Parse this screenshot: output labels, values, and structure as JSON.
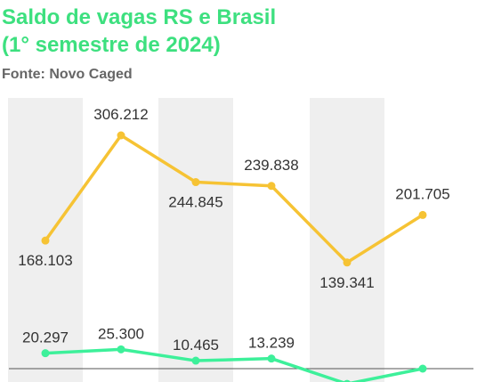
{
  "header": {
    "title_line1": "Saldo de vagas RS e Brasil",
    "title_line2": "(1° semestre de 2024)",
    "source": "Fonte: Novo Caged"
  },
  "colors": {
    "title": "#3de07f",
    "brasil_line": "#f6c334",
    "rs_line": "#3df09a",
    "band": "#efefef",
    "label": "#333333",
    "baseline": "#555555"
  },
  "chart_data": {
    "type": "line",
    "categories": [
      "",
      "",
      "",
      "",
      "",
      ""
    ],
    "series": [
      {
        "values": [
          168103,
          306212,
          244845,
          239838,
          139341,
          201705
        ],
        "labels": [
          "168.103",
          "306.212",
          "244.845",
          "239.838",
          "139.341",
          "201.705"
        ]
      },
      {
        "values": [
          20297,
          25300,
          10465,
          13239,
          -20000,
          0
        ],
        "labels": [
          "20.297",
          "25.300",
          "10.465",
          "13.239",
          "",
          ""
        ]
      }
    ],
    "title": "Saldo de vagas RS e Brasil (1° semestre de 2024)",
    "xlabel": "",
    "ylabel": "",
    "ylim": [
      -40000,
      360000
    ],
    "grid": false,
    "legend": "none"
  }
}
